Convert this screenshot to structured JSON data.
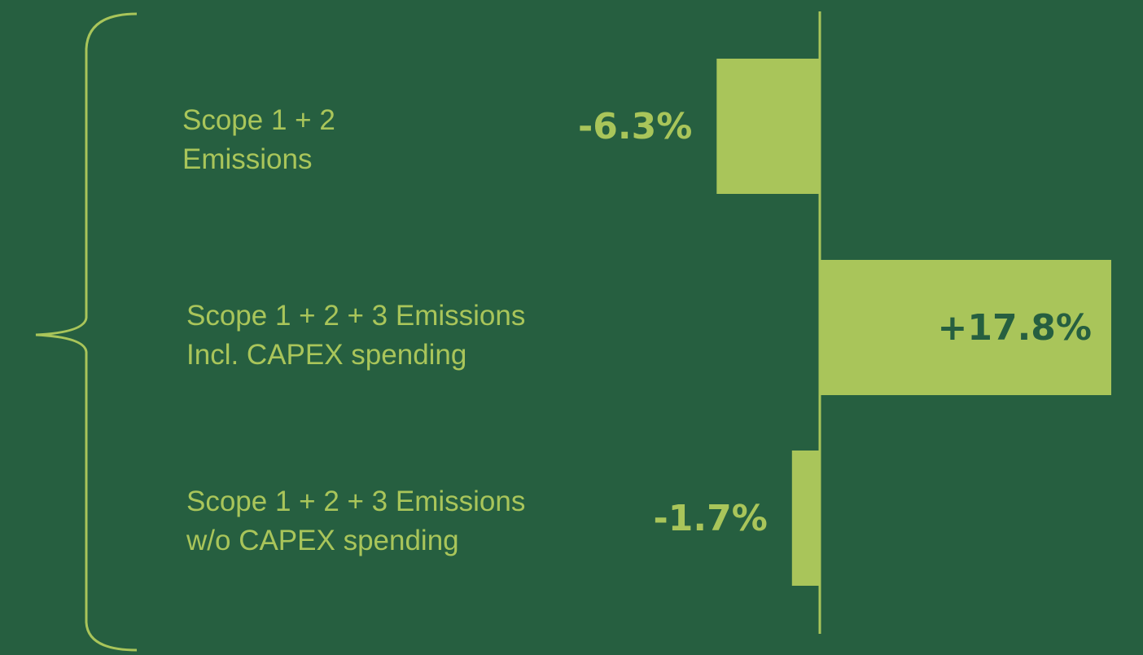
{
  "colors": {
    "background": "#265f40",
    "accent": "#a9c55a",
    "dark_text": "#265f40"
  },
  "chart_data": {
    "type": "bar",
    "orientation": "horizontal",
    "categories": [
      [
        "Scope 1 + 2",
        "Emissions"
      ],
      [
        "Scope 1 + 2 + 3 Emissions",
        "Incl. CAPEX spending"
      ],
      [
        "Scope 1 + 2 + 3 Emissions",
        "w/o CAPEX spending"
      ]
    ],
    "values": [
      -6.3,
      17.8,
      -1.7
    ],
    "value_labels": [
      "-6.3%",
      "+17.8%",
      "-1.7%"
    ],
    "title": "",
    "xlabel": "",
    "ylabel": "",
    "xlim": [
      -9.5,
      17.8
    ],
    "grid": false,
    "legend": "none",
    "annotations": [
      "brace grouping all three categories"
    ]
  }
}
